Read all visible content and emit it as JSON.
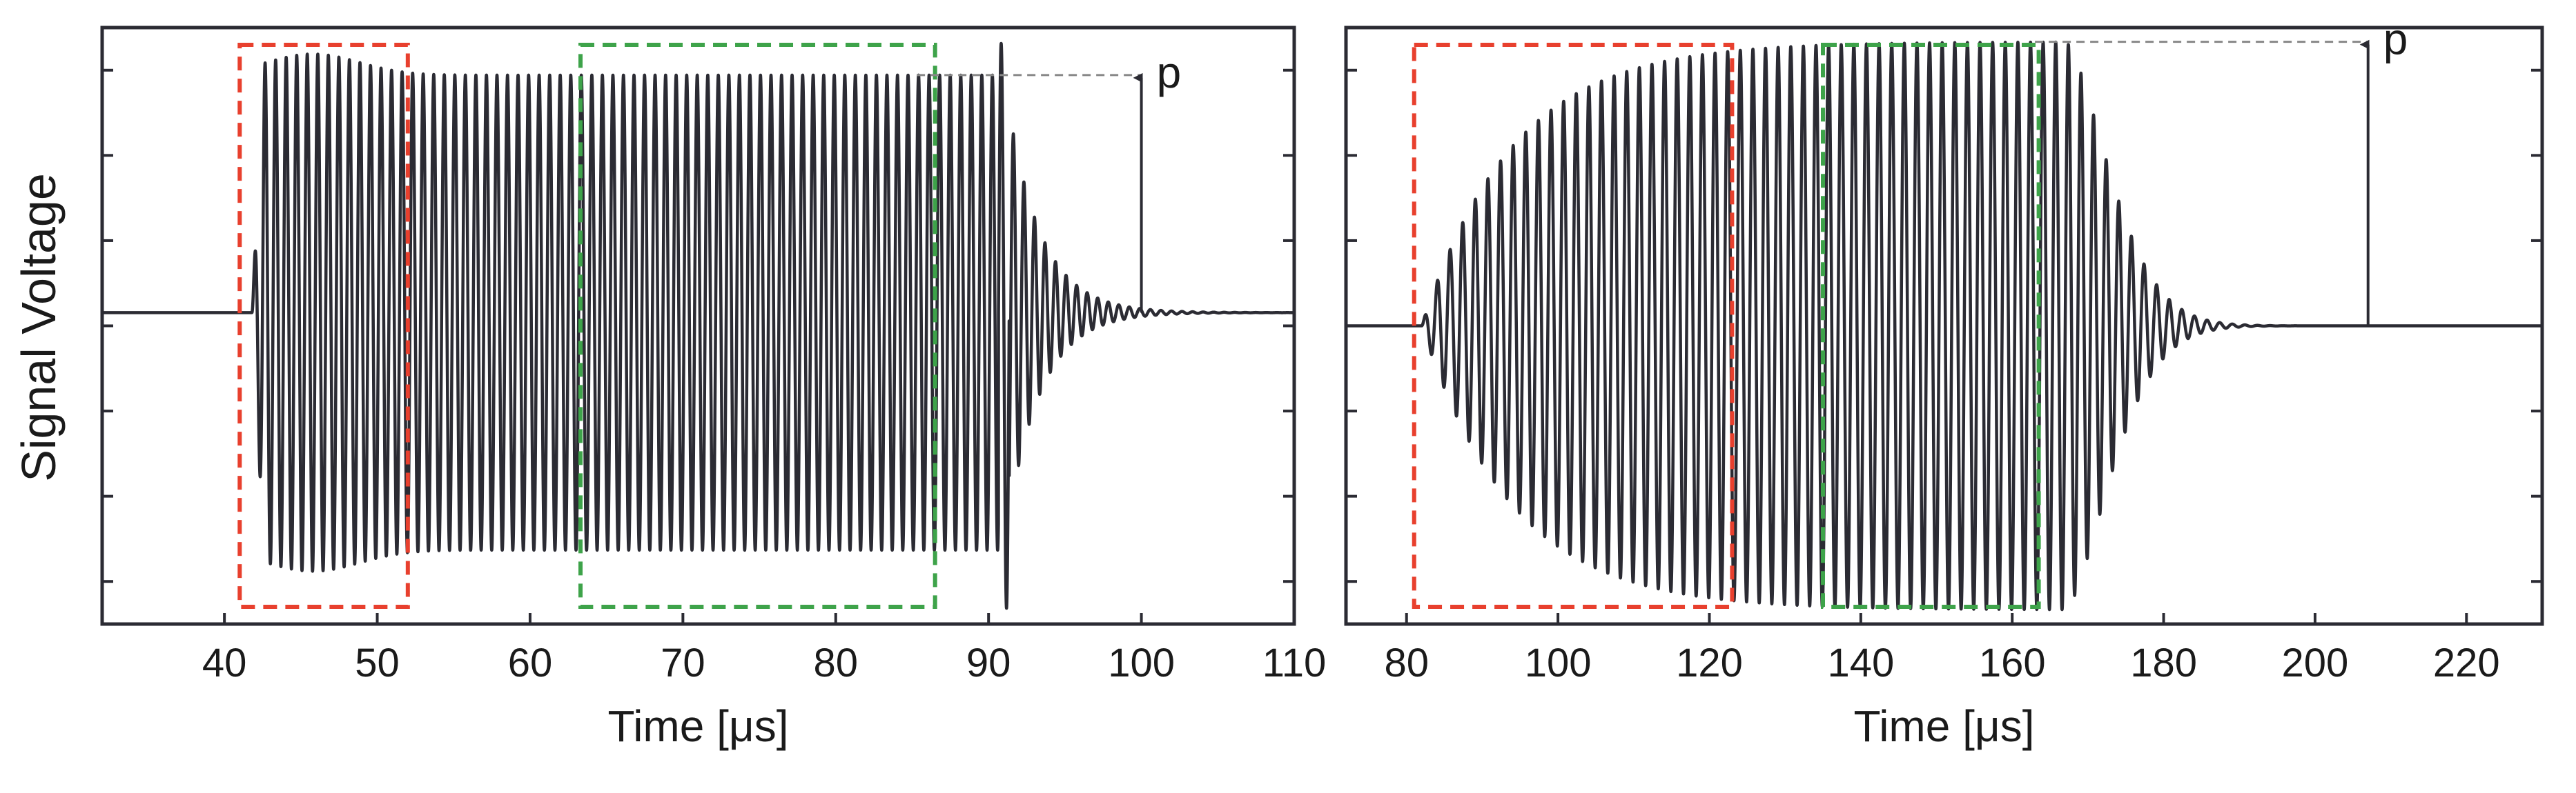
{
  "figure": {
    "ylabel": "Signal Voltage"
  },
  "colors": {
    "signal": "#2b2b33",
    "axes": "#2b2b33",
    "box_initial": "#e8402e",
    "box_steady": "#3ea34a",
    "guide": "#888888"
  },
  "chart_data": [
    {
      "type": "line",
      "panel": "left",
      "xlabel": "Time [μs]",
      "ylabel": "Signal Voltage",
      "xlim": [
        32,
        110
      ],
      "ylim": [
        -1.18,
        1.08
      ],
      "xticks": [
        40,
        50,
        60,
        70,
        80,
        90,
        100,
        110
      ],
      "y_tick_count": 7,
      "y_tick_labels_shown": false,
      "grid": false,
      "signal": {
        "frequency_mhz": 1.45,
        "onset_us": 41.8,
        "burst_end_us": 91.0,
        "baseline": 0.0,
        "peak_initial": 0.98,
        "steady_amplitude": 0.9,
        "end_spike": 1.0,
        "ringdown_tau_us": 2.2
      },
      "boxes": [
        {
          "color": "red",
          "x": [
            41.0,
            52.0
          ],
          "y": [
            -1.13,
            1.15
          ]
        },
        {
          "color": "green",
          "x": [
            63.3,
            86.5
          ],
          "y": [
            -1.13,
            1.12
          ]
        }
      ],
      "annotation": {
        "text": "p",
        "x": 100.0,
        "y_from": 0.0,
        "y_to": 0.9,
        "guide_from_x": 85.3
      }
    },
    {
      "type": "line",
      "panel": "right",
      "xlabel": "Time [μs]",
      "xlim": [
        72,
        230
      ],
      "ylim": [
        -1.05,
        1.05
      ],
      "xticks": [
        80,
        100,
        120,
        140,
        160,
        180,
        200,
        220
      ],
      "y_tick_count": 7,
      "y_tick_labels_shown": false,
      "grid": false,
      "signal": {
        "frequency_mhz": 0.6,
        "onset_us": 82.0,
        "rise_tau_us": 12.0,
        "plateau_start_us": 133.0,
        "decay_start_us": 167.0,
        "decay_tau_us": 8.0,
        "baseline": 0.0,
        "plateau_amplitude": 1.0
      },
      "boxes": [
        {
          "color": "red",
          "x": [
            81.0,
            123.0
          ],
          "y": [
            -1.07,
            1.11
          ]
        },
        {
          "color": "green",
          "x": [
            135.0,
            163.5
          ],
          "y": [
            -1.05,
            1.11
          ]
        }
      ],
      "annotation": {
        "text": "p",
        "x": 207.0,
        "y_from": 0.0,
        "y_to": 1.0,
        "guide_from_x": 163.0
      }
    }
  ]
}
